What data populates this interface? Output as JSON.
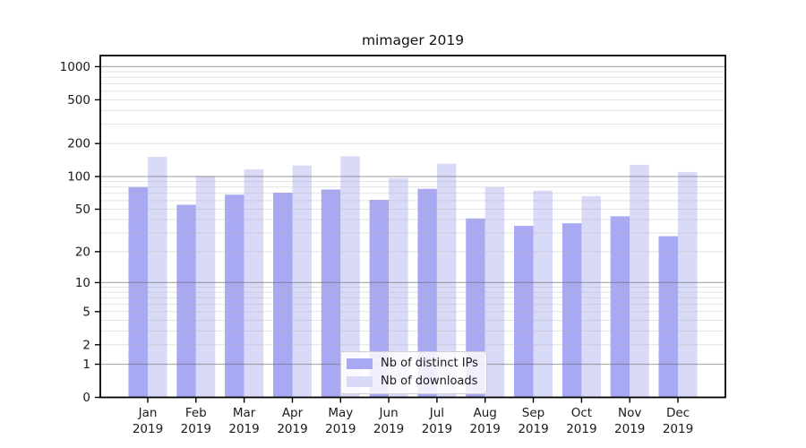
{
  "chart_data": {
    "type": "bar",
    "title": "mimager 2019",
    "categories": [
      "Jan 2019",
      "Feb 2019",
      "Mar 2019",
      "Apr 2019",
      "May 2019",
      "Jun 2019",
      "Jul 2019",
      "Aug 2019",
      "Sep 2019",
      "Oct 2019",
      "Nov 2019",
      "Dec 2019"
    ],
    "month_labels": [
      "Jan",
      "Feb",
      "Mar",
      "Apr",
      "May",
      "Jun",
      "Jul",
      "Aug",
      "Sep",
      "Oct",
      "Nov",
      "Dec"
    ],
    "year_label": "2019",
    "series": [
      {
        "name": "Nb of distinct IPs",
        "key": "distinct-ips",
        "color": "#a8a8f3",
        "values": [
          80,
          55,
          68,
          71,
          76,
          61,
          77,
          41,
          35,
          37,
          43,
          28
        ]
      },
      {
        "name": "Nb of downloads",
        "key": "downloads",
        "color": "#d9d9f8",
        "values": [
          151,
          101,
          116,
          126,
          153,
          97,
          131,
          80,
          74,
          66,
          128,
          110
        ]
      }
    ],
    "xlabel": "",
    "ylabel": "",
    "yscale": "log1p",
    "y_ticks": [
      0,
      1,
      2,
      5,
      10,
      20,
      50,
      100,
      200,
      500,
      1000
    ],
    "ylim": [
      0,
      1250
    ],
    "grid": true,
    "legend_position": "lower center",
    "colors": {
      "axis": "#000000",
      "grid_major": "#b5b5b5",
      "grid_minor": "#e9e9e9",
      "text": "#1a1a1a",
      "background": "#ffffff"
    }
  }
}
